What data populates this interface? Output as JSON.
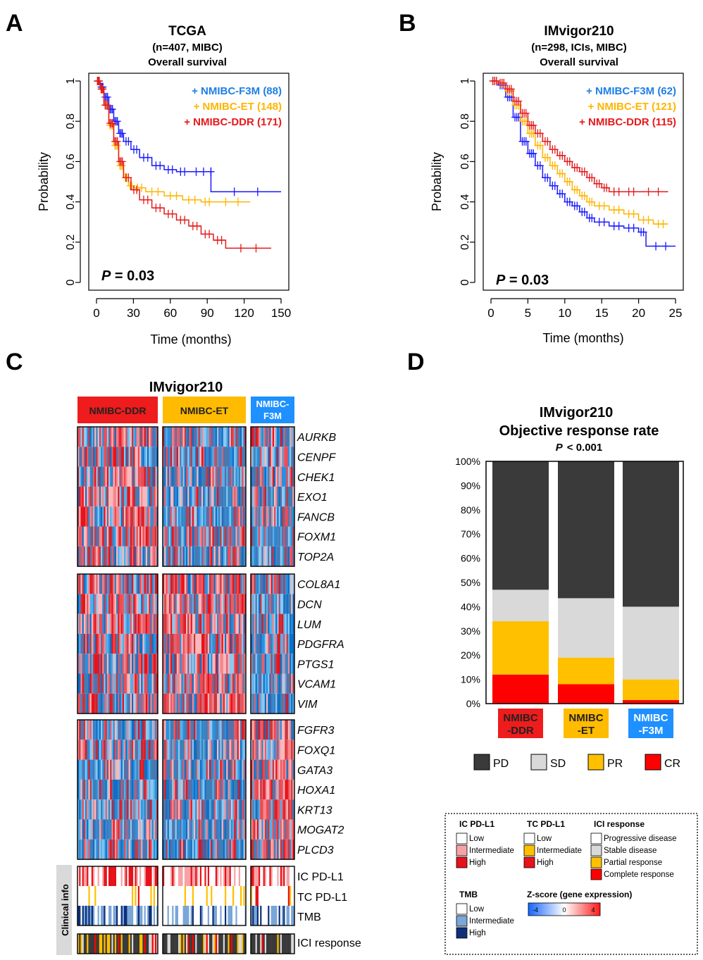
{
  "panel_labels": [
    "A",
    "B",
    "C",
    "D"
  ],
  "colors": {
    "ddr": "#e41a1c",
    "et": "#ffb400",
    "f3m": "#1a1aff",
    "f3m_text": "#1e7fe6",
    "et_text": "#ffb400",
    "ddr_text": "#e41a1c",
    "box_ddr": "#ee1c1c",
    "box_et": "#ffbb00",
    "box_f3m": "#1e90ff",
    "pd": "#3a3a3a",
    "sd": "#d9d9d9",
    "pr": "#ffc000",
    "cr": "#ff0000",
    "heat_low": "#1a8fd6",
    "heat_high": "#e41a1c"
  },
  "chart_data": [
    {
      "id": "A",
      "type": "line",
      "title": "TCGA",
      "subtitle": "(n=407, MIBC)",
      "subtitle2": "Overall survival",
      "xlabel": "Time (months)",
      "ylabel": "Probability",
      "xlim": [
        0,
        150
      ],
      "ylim": [
        0,
        1
      ],
      "xticks": [
        0,
        30,
        60,
        90,
        120,
        150
      ],
      "yticks": [
        0,
        0.2,
        0.4,
        0.6,
        0.8,
        1
      ],
      "ytick_labels": [
        "0",
        "0.2",
        "0.4",
        "0.6",
        "0.8",
        "1"
      ],
      "pvalue_label": "P",
      "pvalue_text": " = 0.03",
      "legend": [
        "+ NMIBC-F3M (88)",
        "+ NMIBC-ET (148)",
        "+ NMIBC-DDR (171)"
      ],
      "series": [
        {
          "name": "NMIBC-F3M",
          "color_key": "f3m",
          "x": [
            0,
            3,
            6,
            10,
            14,
            18,
            22,
            28,
            35,
            45,
            55,
            65,
            75,
            93,
            93,
            150
          ],
          "y": [
            1,
            0.97,
            0.92,
            0.86,
            0.8,
            0.74,
            0.7,
            0.66,
            0.62,
            0.58,
            0.56,
            0.55,
            0.55,
            0.55,
            0.45,
            0.45
          ]
        },
        {
          "name": "NMIBC-ET",
          "color_key": "et",
          "x": [
            0,
            3,
            6,
            10,
            14,
            18,
            22,
            26,
            30,
            40,
            55,
            70,
            85,
            95,
            125
          ],
          "y": [
            1,
            0.96,
            0.88,
            0.78,
            0.68,
            0.58,
            0.52,
            0.48,
            0.47,
            0.45,
            0.43,
            0.41,
            0.4,
            0.4,
            0.4
          ]
        },
        {
          "name": "NMIBC-DDR",
          "color_key": "ddr",
          "x": [
            0,
            3,
            6,
            10,
            14,
            18,
            22,
            28,
            35,
            45,
            55,
            65,
            75,
            85,
            95,
            105,
            142
          ],
          "y": [
            1,
            0.96,
            0.88,
            0.79,
            0.7,
            0.6,
            0.52,
            0.46,
            0.41,
            0.37,
            0.34,
            0.31,
            0.28,
            0.24,
            0.21,
            0.17,
            0.17
          ]
        }
      ]
    },
    {
      "id": "B",
      "type": "line",
      "title": "IMvigor210",
      "subtitle": "(n=298, ICIs, MIBC)",
      "subtitle2": "Overall survival",
      "xlabel": "Time (months)",
      "ylabel": "Probability",
      "xlim": [
        0,
        25
      ],
      "ylim": [
        0,
        1
      ],
      "xticks": [
        0,
        5,
        10,
        15,
        20,
        25
      ],
      "yticks": [
        0,
        0.2,
        0.4,
        0.6,
        0.8,
        1
      ],
      "ytick_labels": [
        "0",
        "0.2",
        "0.4",
        "0.6",
        "0.8",
        "1"
      ],
      "pvalue_label": "P",
      "pvalue_text": " = 0.03",
      "legend": [
        "+ NMIBC-F3M (62)",
        "+ NMIBC-ET (121)",
        "+ NMIBC-DDR (115)"
      ],
      "series": [
        {
          "name": "NMIBC-F3M",
          "color_key": "f3m",
          "x": [
            0,
            1,
            2,
            3,
            4,
            5,
            6,
            7,
            8,
            9,
            10,
            11,
            12,
            13,
            14,
            16,
            18,
            20,
            21,
            25
          ],
          "y": [
            1,
            0.98,
            0.92,
            0.82,
            0.7,
            0.64,
            0.58,
            0.52,
            0.48,
            0.44,
            0.4,
            0.38,
            0.35,
            0.32,
            0.3,
            0.28,
            0.27,
            0.25,
            0.18,
            0.18
          ]
        },
        {
          "name": "NMIBC-ET",
          "color_key": "et",
          "x": [
            0,
            1,
            2,
            3,
            4,
            5,
            6,
            7,
            8,
            9,
            10,
            11,
            12,
            13,
            14,
            16,
            18,
            20,
            22,
            24
          ],
          "y": [
            1,
            0.99,
            0.95,
            0.88,
            0.8,
            0.74,
            0.68,
            0.62,
            0.58,
            0.54,
            0.5,
            0.46,
            0.43,
            0.4,
            0.38,
            0.36,
            0.34,
            0.31,
            0.29,
            0.29
          ]
        },
        {
          "name": "NMIBC-DDR",
          "color_key": "ddr",
          "x": [
            0,
            1,
            2,
            3,
            4,
            5,
            6,
            7,
            8,
            9,
            10,
            11,
            12,
            13,
            14,
            15,
            16,
            18,
            20,
            24
          ],
          "y": [
            1,
            0.99,
            0.96,
            0.9,
            0.84,
            0.78,
            0.74,
            0.7,
            0.66,
            0.63,
            0.6,
            0.57,
            0.55,
            0.52,
            0.49,
            0.47,
            0.45,
            0.45,
            0.45,
            0.45
          ]
        }
      ]
    },
    {
      "id": "C",
      "type": "heatmap",
      "title": "IMvigor210",
      "groups": [
        {
          "label": "NMIBC-DDR",
          "color_key": "box_ddr"
        },
        {
          "label": "NMIBC-ET",
          "color_key": "box_et"
        },
        {
          "label_lines": [
            "NMIBC-",
            "F3M"
          ],
          "color_key": "box_f3m"
        }
      ],
      "gene_blocks": [
        {
          "genes": [
            "AURKB",
            "CENPF",
            "CHEK1",
            "EXO1",
            "FANCB",
            "FOXM1",
            "TOP2A"
          ],
          "bias": [
            0.68,
            0.32,
            0.35
          ]
        },
        {
          "genes": [
            "COL8A1",
            "DCN",
            "LUM",
            "PDGFRA",
            "PTGS1",
            "VCAM1",
            "VIM"
          ],
          "bias": [
            0.55,
            0.72,
            0.25
          ]
        },
        {
          "genes": [
            "FGFR3",
            "FOXQ1",
            "GATA3",
            "HOXA1",
            "KRT13",
            "MOGAT2",
            "PLCD3"
          ],
          "bias": [
            0.32,
            0.28,
            0.7
          ]
        }
      ],
      "clinical_label": "Clinical info",
      "clinical_tracks": [
        "IC PD-L1",
        "TC PD-L1",
        "TMB"
      ],
      "response_track": "ICI response"
    },
    {
      "id": "D",
      "type": "bar",
      "title": "IMvigor210",
      "subtitle": "Objective response rate",
      "pvalue_label": "P",
      "pvalue_text": "< 0.001",
      "categories": [
        [
          "NMIBC",
          "-DDR"
        ],
        [
          "NMIBC",
          "-ET"
        ],
        [
          "NMIBC",
          "-F3M"
        ]
      ],
      "yticks": [
        0,
        10,
        20,
        30,
        40,
        50,
        60,
        70,
        80,
        90,
        100
      ],
      "ytick_labels": [
        "0%",
        "10%",
        "20%",
        "30%",
        "40%",
        "50%",
        "60%",
        "70%",
        "80%",
        "90%",
        "100%"
      ],
      "ylim": [
        0,
        100
      ],
      "series": [
        {
          "name": "CR",
          "color_key": "cr",
          "values": [
            12,
            8,
            1.5
          ]
        },
        {
          "name": "PR",
          "color_key": "pr",
          "values": [
            22,
            11,
            8.5
          ]
        },
        {
          "name": "SD",
          "color_key": "sd",
          "values": [
            13,
            24.5,
            30
          ]
        },
        {
          "name": "PD",
          "color_key": "pd",
          "values": [
            53,
            56.5,
            60
          ]
        }
      ],
      "legend": [
        "PD",
        "SD",
        "PR",
        "CR"
      ]
    }
  ],
  "key_legend": {
    "ic": {
      "title": "IC PD-L1",
      "items": [
        "Low",
        "Intermediate",
        "High"
      ]
    },
    "tc": {
      "title": "TC PD-L1",
      "items": [
        "Low",
        "Intermediate",
        "High"
      ]
    },
    "ici": {
      "title": "ICI response",
      "items": [
        "Progressive disease",
        "Stable disease",
        "Partial response",
        "Complete response"
      ]
    },
    "tmb": {
      "title": "TMB",
      "items": [
        "Low",
        "Intermediate",
        "High"
      ]
    },
    "zscore": {
      "title": "Z-score (gene expression)",
      "ticks": [
        "-4",
        "0",
        "4"
      ]
    }
  }
}
